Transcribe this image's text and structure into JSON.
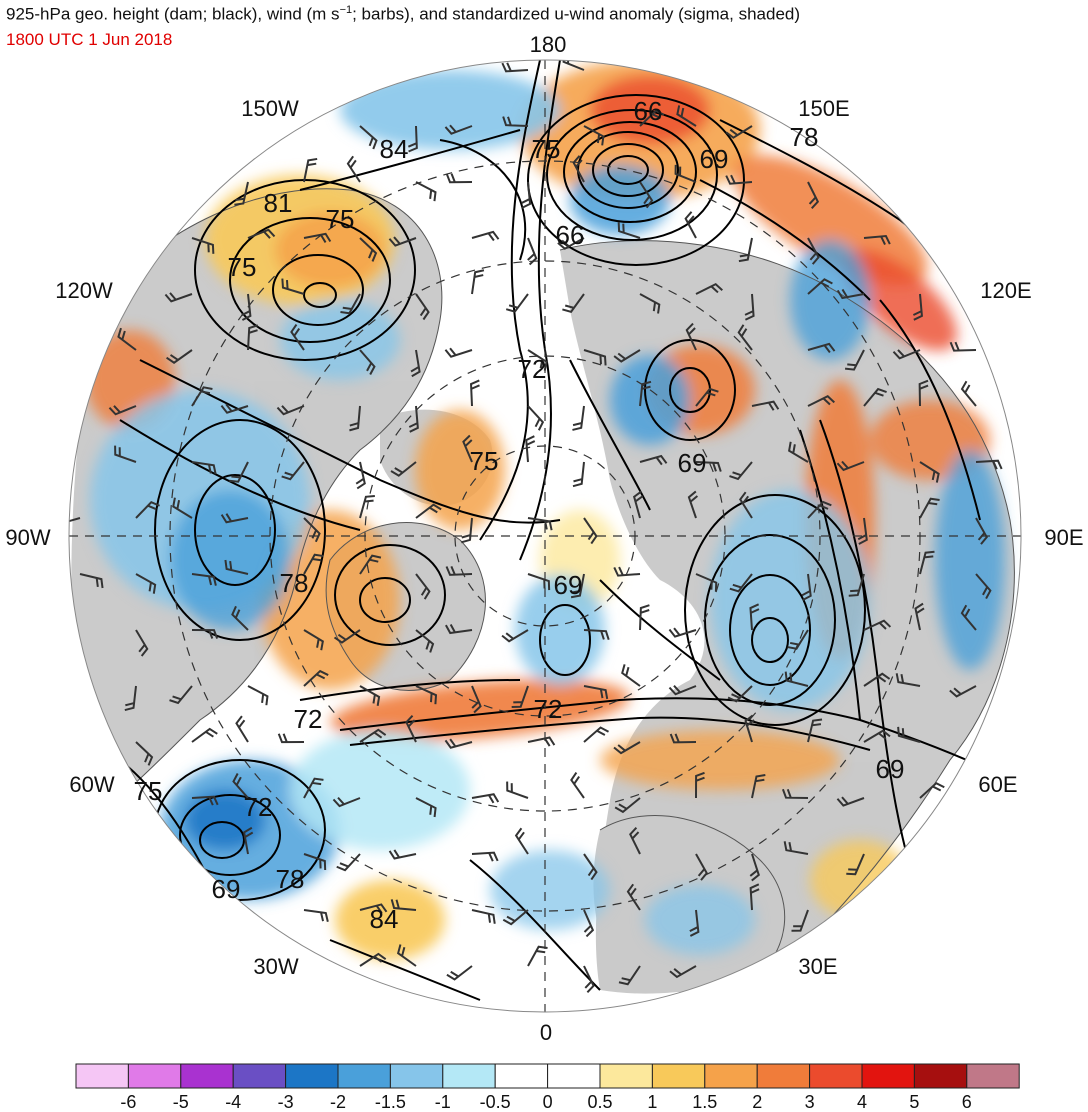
{
  "header": {
    "title_main": "925-hPa geo. height (dam; black), wind (m s",
    "title_sup": "−1",
    "title_rest": "; barbs), and standardized u-wind anomaly (sigma, shaded)",
    "datetime": "1800 UTC 1 Jun 2018"
  },
  "map": {
    "projection": "north-polar-stereographic",
    "longitude_labels": {
      "lon_180": "180",
      "lon_150E": "150E",
      "lon_120E": "120E",
      "lon_90E": "90E",
      "lon_60E": "60E",
      "lon_30E": "30E",
      "lon_0": "0",
      "lon_30W": "30W",
      "lon_60W": "60W",
      "lon_90W": "90W",
      "lon_120W": "120W",
      "lon_150W": "150W"
    },
    "contour_labels": [
      {
        "text": "66"
      },
      {
        "text": "69"
      },
      {
        "text": "78"
      },
      {
        "text": "75"
      },
      {
        "text": "84"
      },
      {
        "text": "81"
      },
      {
        "text": "75"
      },
      {
        "text": "75"
      },
      {
        "text": "66"
      },
      {
        "text": "72"
      },
      {
        "text": "75"
      },
      {
        "text": "69"
      },
      {
        "text": "78"
      },
      {
        "text": "69"
      },
      {
        "text": "72"
      },
      {
        "text": "72"
      },
      {
        "text": "69"
      },
      {
        "text": "75"
      },
      {
        "text": "72"
      },
      {
        "text": "78"
      },
      {
        "text": "69"
      },
      {
        "text": "84"
      }
    ],
    "colors": {
      "land": "#c8c8c8",
      "contour": "#000000",
      "coast": "#555555",
      "barb": "#333333"
    }
  },
  "legend": {
    "tick_labels": [
      "-6",
      "-5",
      "-4",
      "-3",
      "-2",
      "-1.5",
      "-1",
      "-0.5",
      "0",
      "0.5",
      "1",
      "1.5",
      "2",
      "3",
      "4",
      "5",
      "6"
    ],
    "colors": [
      "#f5c6f5",
      "#e07ae8",
      "#a932d0",
      "#6a4fc4",
      "#1c76c6",
      "#4aa0da",
      "#86c5ea",
      "#b4e8f6",
      "#ffffff",
      "#ffffff",
      "#fce89c",
      "#f8c95a",
      "#f5a24a",
      "#f07c3a",
      "#eb4b2d",
      "#e2140f",
      "#a60f0f",
      "#c07888"
    ]
  }
}
